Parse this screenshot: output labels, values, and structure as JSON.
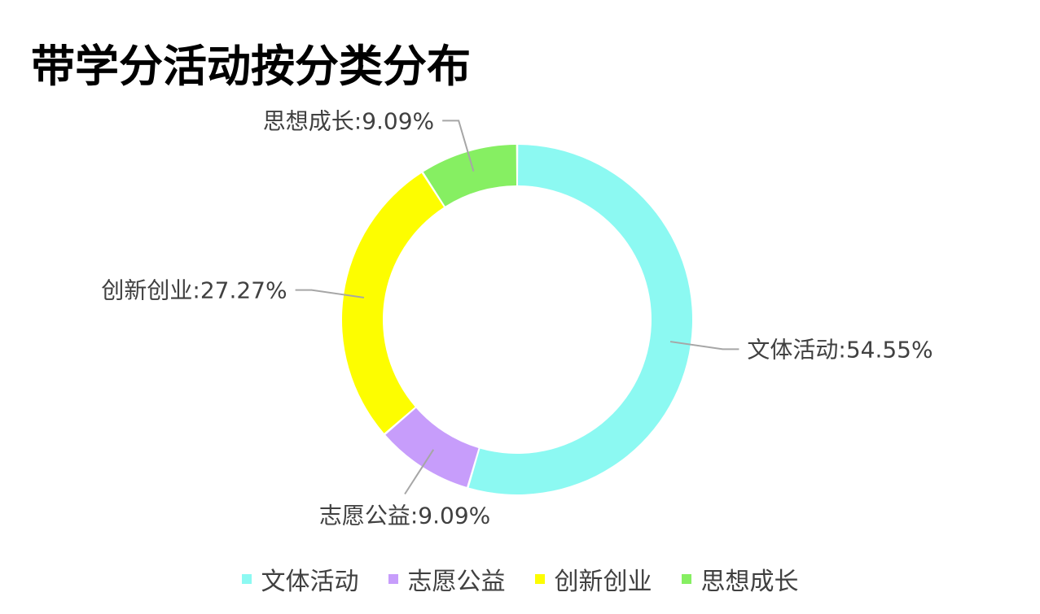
{
  "chart_data": {
    "type": "pie",
    "title": "带学分活动按分类分布",
    "donut": true,
    "legend_position": "bottom",
    "categories": [
      "文体活动",
      "志愿公益",
      "创新创业",
      "思想成长"
    ],
    "values": [
      54.55,
      9.09,
      27.27,
      9.09
    ],
    "labels": [
      "文体活动:54.55%",
      "志愿公益:9.09%",
      "创新创业:27.27%",
      "思想成长:9.09%"
    ],
    "colors": [
      "#8cf9f2",
      "#c79dfb",
      "#fdfd00",
      "#86ef62"
    ]
  }
}
